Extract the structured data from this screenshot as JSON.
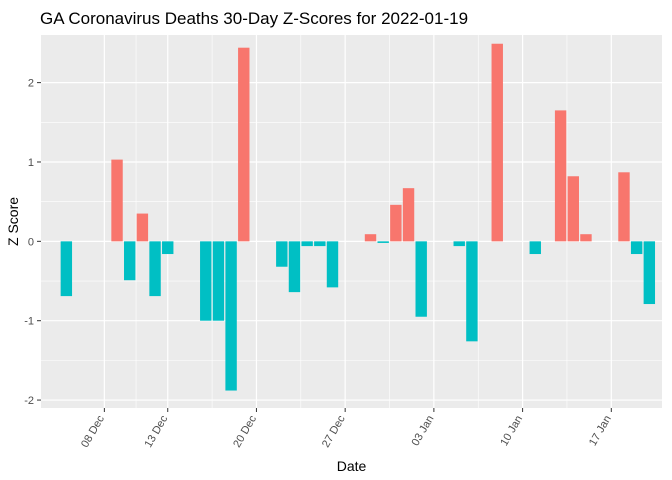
{
  "chart_data": {
    "type": "bar",
    "title": "GA Coronavirus Deaths 30-Day Z-Scores for 2022-01-19",
    "xlabel": "Date",
    "ylabel": "Z Score",
    "ylim": [
      -2.1,
      2.6
    ],
    "yticks": [
      -2,
      -1,
      0,
      1,
      2
    ],
    "x_ticks": [
      {
        "date": "2021-12-08",
        "label": "08 Dec"
      },
      {
        "date": "2021-12-13",
        "label": "13 Dec"
      },
      {
        "date": "2021-12-20",
        "label": "20 Dec"
      },
      {
        "date": "2021-12-27",
        "label": "27 Dec"
      },
      {
        "date": "2022-01-03",
        "label": "03 Jan"
      },
      {
        "date": "2022-01-10",
        "label": "10 Jan"
      },
      {
        "date": "2022-01-17",
        "label": "17 Jan"
      }
    ],
    "xlim": [
      "2021-12-03",
      "2022-01-21"
    ],
    "grid": true,
    "legend": "none",
    "colors": {
      "positive": "#F8766D",
      "negative": "#00BFC4",
      "panel": "#EBEBEB",
      "grid": "#FFFFFF"
    },
    "points": [
      {
        "date": "2021-12-05",
        "value": -0.69
      },
      {
        "date": "2021-12-09",
        "value": 1.03
      },
      {
        "date": "2021-12-10",
        "value": -0.49
      },
      {
        "date": "2021-12-11",
        "value": 0.35
      },
      {
        "date": "2021-12-12",
        "value": -0.69
      },
      {
        "date": "2021-12-13",
        "value": -0.16
      },
      {
        "date": "2021-12-16",
        "value": -1.0
      },
      {
        "date": "2021-12-17",
        "value": -1.0
      },
      {
        "date": "2021-12-18",
        "value": -1.88
      },
      {
        "date": "2021-12-19",
        "value": 2.44
      },
      {
        "date": "2021-12-22",
        "value": -0.32
      },
      {
        "date": "2021-12-23",
        "value": -0.64
      },
      {
        "date": "2021-12-24",
        "value": -0.06
      },
      {
        "date": "2021-12-25",
        "value": -0.06
      },
      {
        "date": "2021-12-26",
        "value": -0.58
      },
      {
        "date": "2021-12-29",
        "value": 0.09
      },
      {
        "date": "2021-12-30",
        "value": -0.02
      },
      {
        "date": "2021-12-31",
        "value": 0.46
      },
      {
        "date": "2022-01-01",
        "value": 0.67
      },
      {
        "date": "2022-01-02",
        "value": -0.95
      },
      {
        "date": "2022-01-05",
        "value": -0.06
      },
      {
        "date": "2022-01-06",
        "value": -1.26
      },
      {
        "date": "2022-01-08",
        "value": 2.49
      },
      {
        "date": "2022-01-11",
        "value": -0.16
      },
      {
        "date": "2022-01-13",
        "value": 1.65
      },
      {
        "date": "2022-01-14",
        "value": 0.82
      },
      {
        "date": "2022-01-15",
        "value": 0.09
      },
      {
        "date": "2022-01-18",
        "value": 0.87
      },
      {
        "date": "2022-01-19",
        "value": -0.16
      },
      {
        "date": "2022-01-20",
        "value": -0.79
      }
    ]
  }
}
